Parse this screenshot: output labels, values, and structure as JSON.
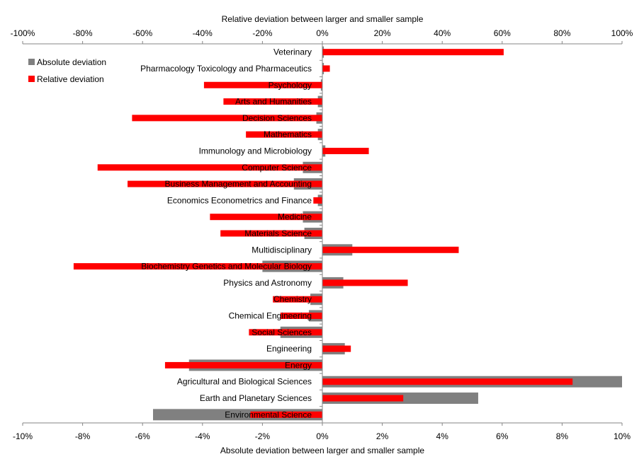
{
  "chart_data": {
    "type": "bar",
    "orientation": "horizontal",
    "top_axis": {
      "title": "Relative deviation between larger and smaller sample",
      "range": [
        -100,
        100
      ],
      "ticks": [
        "-100%",
        "-80%",
        "-60%",
        "-40%",
        "-20%",
        "0%",
        "20%",
        "40%",
        "60%",
        "80%",
        "100%"
      ]
    },
    "bottom_axis": {
      "title": "Absolute deviation between larger and smaller sample",
      "range": [
        -10,
        10
      ],
      "ticks": [
        "-10%",
        "-8%",
        "-6%",
        "-4%",
        "-2%",
        "0%",
        "2%",
        "4%",
        "6%",
        "8%",
        "10%"
      ]
    },
    "legend": {
      "position": "top-left",
      "entries": [
        {
          "name": "Absolute deviation",
          "color": "#808080"
        },
        {
          "name": "Relative deviation",
          "color": "#ff0000"
        }
      ]
    },
    "categories": [
      "Veterinary",
      "Pharmacology Toxicology and Pharmaceutics",
      "Psychology",
      "Arts and Humanities",
      "Decision Sciences",
      "Mathematics",
      "Immunology and Microbiology",
      "Computer Science",
      "Business Management and Accounting",
      "Economics Econometrics and Finance",
      "Medicine",
      "Materials Science",
      "Multidisciplinary",
      "Biochemistry Genetics and Molecular Biology",
      "Physics and Astronomy",
      "Chemistry",
      "Chemical Engineering",
      "Social Sciences",
      "Engineering",
      "Energy",
      "Agricultural and Biological Sciences",
      "Earth and Planetary Sciences",
      "Environmental Science"
    ],
    "series": [
      {
        "name": "Absolute deviation",
        "axis": "bottom",
        "color": "#808080",
        "values": [
          0.05,
          0.05,
          -0.05,
          -0.15,
          -0.2,
          -0.15,
          0.1,
          -0.65,
          -0.95,
          -0.15,
          -0.65,
          -0.6,
          1.0,
          -2.0,
          0.7,
          -0.4,
          -0.45,
          -1.4,
          0.75,
          -4.45,
          10.0,
          5.2,
          -5.65
        ]
      },
      {
        "name": "Relative deviation",
        "axis": "top",
        "color": "#ff0000",
        "values": [
          60.5,
          2.5,
          -39.5,
          -33.0,
          -63.5,
          -25.5,
          15.5,
          -75.0,
          -65.0,
          -3.0,
          -37.5,
          -34.0,
          45.5,
          -83.0,
          28.5,
          -16.5,
          -14.0,
          -24.5,
          9.5,
          -52.5,
          83.5,
          27.0,
          -24.0
        ]
      }
    ],
    "grid": false
  }
}
